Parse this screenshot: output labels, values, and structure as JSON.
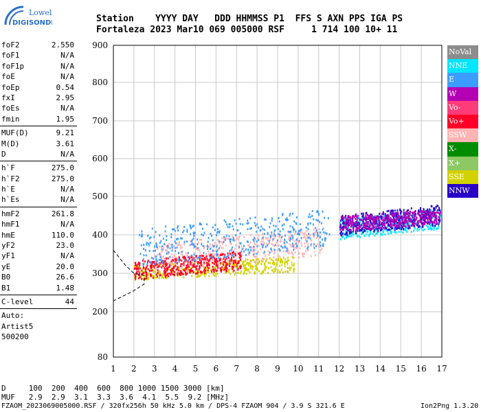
{
  "logo": {
    "line1": "Lowell",
    "line2": "DIGISONDE"
  },
  "header": {
    "line1": "Station    YYYY DAY   DDD HHMMSS P1  FFS S AXN PPS IGA PS",
    "line2": "Fortaleza 2023 Mar10 069 005000 RSF     1 714 100 10+ 11"
  },
  "params_group1": [
    {
      "k": "foF2",
      "v": "2.550"
    },
    {
      "k": "foF1",
      "v": "N/A"
    },
    {
      "k": "foF1p",
      "v": "N/A"
    },
    {
      "k": "foE",
      "v": "N/A"
    },
    {
      "k": "foEp",
      "v": "0.54"
    },
    {
      "k": "fxI",
      "v": "2.95"
    },
    {
      "k": "foEs",
      "v": "N/A"
    },
    {
      "k": "fmin",
      "v": "1.95"
    }
  ],
  "params_group2": [
    {
      "k": "MUF(D)",
      "v": "9.21"
    },
    {
      "k": "M(D)",
      "v": "3.61"
    },
    {
      "k": "D",
      "v": "N/A"
    }
  ],
  "params_group3": [
    {
      "k": "h`F",
      "v": "275.0"
    },
    {
      "k": "h`F2",
      "v": "275.0"
    },
    {
      "k": "h`E",
      "v": "N/A"
    },
    {
      "k": "h`Es",
      "v": "N/A"
    }
  ],
  "params_group4": [
    {
      "k": "hmF2",
      "v": "261.8"
    },
    {
      "k": "hmF1",
      "v": "N/A"
    },
    {
      "k": "hmE",
      "v": "110.0"
    },
    {
      "k": "yF2",
      "v": "23.0"
    },
    {
      "k": "yF1",
      "v": "N/A"
    },
    {
      "k": "yE",
      "v": "20.0"
    },
    {
      "k": "B0",
      "v": "26.6"
    },
    {
      "k": "B1",
      "v": "1.48"
    }
  ],
  "params_group5": [
    {
      "k": "C-level",
      "v": "44"
    }
  ],
  "auto": {
    "l1": "Auto:",
    "l2": "Artist5",
    "l3": "500200"
  },
  "legend": [
    {
      "label": "NoVal",
      "color": "#8c8c8c"
    },
    {
      "label": "NNE",
      "color": "#00e6ff"
    },
    {
      "label": "E",
      "color": "#3c9cff"
    },
    {
      "label": "W",
      "color": "#b400b4"
    },
    {
      "label": "Vo-",
      "color": "#ff3c78"
    },
    {
      "label": "Vo+",
      "color": "#ff0028"
    },
    {
      "label": "SSW",
      "color": "#ffb4b4"
    },
    {
      "label": "X-",
      "color": "#008c00"
    },
    {
      "label": "X+",
      "color": "#8cc864"
    },
    {
      "label": "SSE",
      "color": "#d2d200"
    },
    {
      "label": "NNW",
      "color": "#2800c8"
    }
  ],
  "footer": {
    "d_row": "D     100  200  400  600  800 1000 1500 3000 [km]",
    "muf_row": "MUF   2.9  2.9  3.1  3.3  3.6  4.1  5.5  9.2 [MHz]",
    "info": "FZAOM_2023069005000.RSF / 320fx256h 50 kHz 5.0 km / DPS-4 FZAOM 904 / 3.9 S 321.6 E",
    "version": "Ion2Png 1.3.20"
  },
  "chart_data": {
    "type": "scatter",
    "xlim": [
      1,
      17
    ],
    "ylim": [
      80,
      900
    ],
    "x_ticks": [
      1,
      2,
      3,
      4,
      5,
      6,
      7,
      8,
      9,
      10,
      11,
      12,
      13,
      14,
      15,
      16,
      17
    ],
    "y_ticks": [
      80,
      200,
      300,
      400,
      500,
      600,
      700,
      800,
      900
    ],
    "grid": true,
    "legend_position": "right",
    "clusters": [
      {
        "name": "SSE",
        "x": [
          2.0,
          9.8
        ],
        "y": [
          285,
          345
        ]
      },
      {
        "name": "SSW",
        "x": [
          3.0,
          11.2
        ],
        "y": [
          310,
          420
        ]
      },
      {
        "name": "Vo+",
        "x": [
          2.0,
          7.2
        ],
        "y": [
          285,
          360
        ]
      },
      {
        "name": "E",
        "x": [
          2.2,
          11.5
        ],
        "y": [
          320,
          470
        ]
      },
      {
        "name": "NNE",
        "x": [
          12.0,
          16.9
        ],
        "y": [
          390,
          470
        ]
      },
      {
        "name": "NNW",
        "x": [
          12.0,
          16.9
        ],
        "y": [
          400,
          480
        ]
      },
      {
        "name": "W",
        "x": [
          12.0,
          16.9
        ],
        "y": [
          410,
          470
        ]
      }
    ],
    "trace": [
      {
        "x": 1.0,
        "y": 360
      },
      {
        "x": 1.6,
        "y": 320
      },
      {
        "x": 2.0,
        "y": 300
      },
      {
        "x": 2.5,
        "y": 295
      },
      {
        "x": 2.5,
        "y": 272
      },
      {
        "x": 2.0,
        "y": 255
      },
      {
        "x": 1.0,
        "y": 228
      }
    ]
  }
}
